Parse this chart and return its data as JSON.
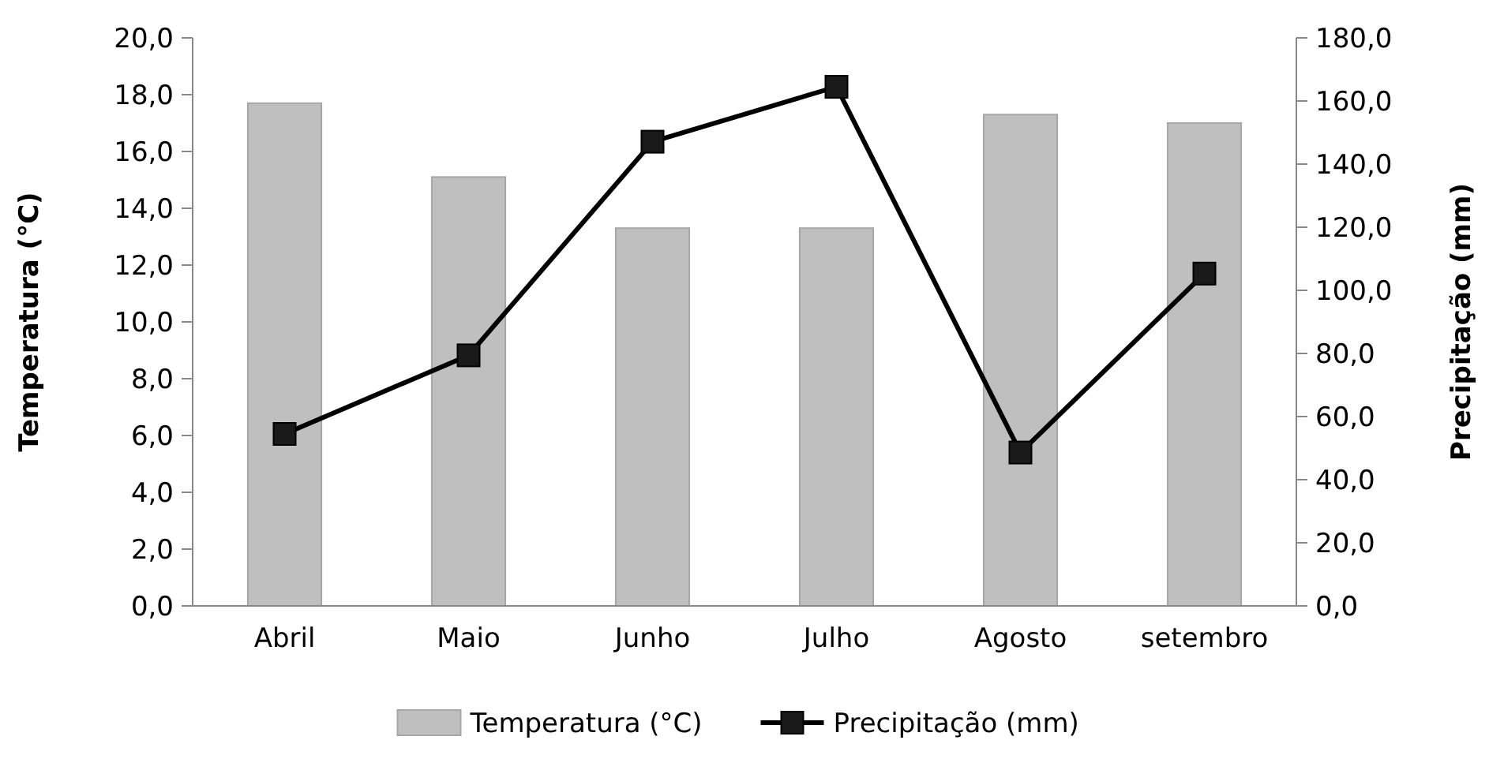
{
  "chart_data": {
    "type": "bar",
    "categories": [
      "Abril",
      "Maio",
      "Junho",
      "Julho",
      "Agosto",
      "setembro"
    ],
    "ylabel": "Temperatura (°C)",
    "y2label": "Precipitação (mm)",
    "ylim": [
      0,
      20
    ],
    "yticks": [
      {
        "value": 0,
        "label": "0,0"
      },
      {
        "value": 2,
        "label": "2,0"
      },
      {
        "value": 4,
        "label": "4,0"
      },
      {
        "value": 6,
        "label": "6,0"
      },
      {
        "value": 8,
        "label": "8,0"
      },
      {
        "value": 10,
        "label": "10,0"
      },
      {
        "value": 12,
        "label": "12,0"
      },
      {
        "value": 14,
        "label": "14,0"
      },
      {
        "value": 16,
        "label": "16,0"
      },
      {
        "value": 18,
        "label": "18,0"
      },
      {
        "value": 20,
        "label": "20,0"
      }
    ],
    "y2lim": [
      0,
      180
    ],
    "y2ticks": [
      {
        "value": 0,
        "label": "0,0"
      },
      {
        "value": 20,
        "label": "20,0"
      },
      {
        "value": 40,
        "label": "40,0"
      },
      {
        "value": 60,
        "label": "60,0"
      },
      {
        "value": 80,
        "label": "80,0"
      },
      {
        "value": 100,
        "label": "100,0"
      },
      {
        "value": 120,
        "label": "120,0"
      },
      {
        "value": 140,
        "label": "140,0"
      },
      {
        "value": 160,
        "label": "160,0"
      },
      {
        "value": 180,
        "label": "180,0"
      }
    ],
    "series": [
      {
        "name": "Temperatura (°C)",
        "color": "#bfbfbf",
        "values": [
          17.7,
          15.1,
          13.3,
          13.3,
          17.3,
          17.0
        ]
      },
      {
        "name": "Precipitação (mm)",
        "type": "line",
        "axis": "y2",
        "color": "#000000",
        "marker": "square",
        "values": [
          54.5,
          79.4,
          147.1,
          164.5,
          48.6,
          105.3
        ]
      }
    ],
    "grid": false,
    "legend": "bottom"
  }
}
